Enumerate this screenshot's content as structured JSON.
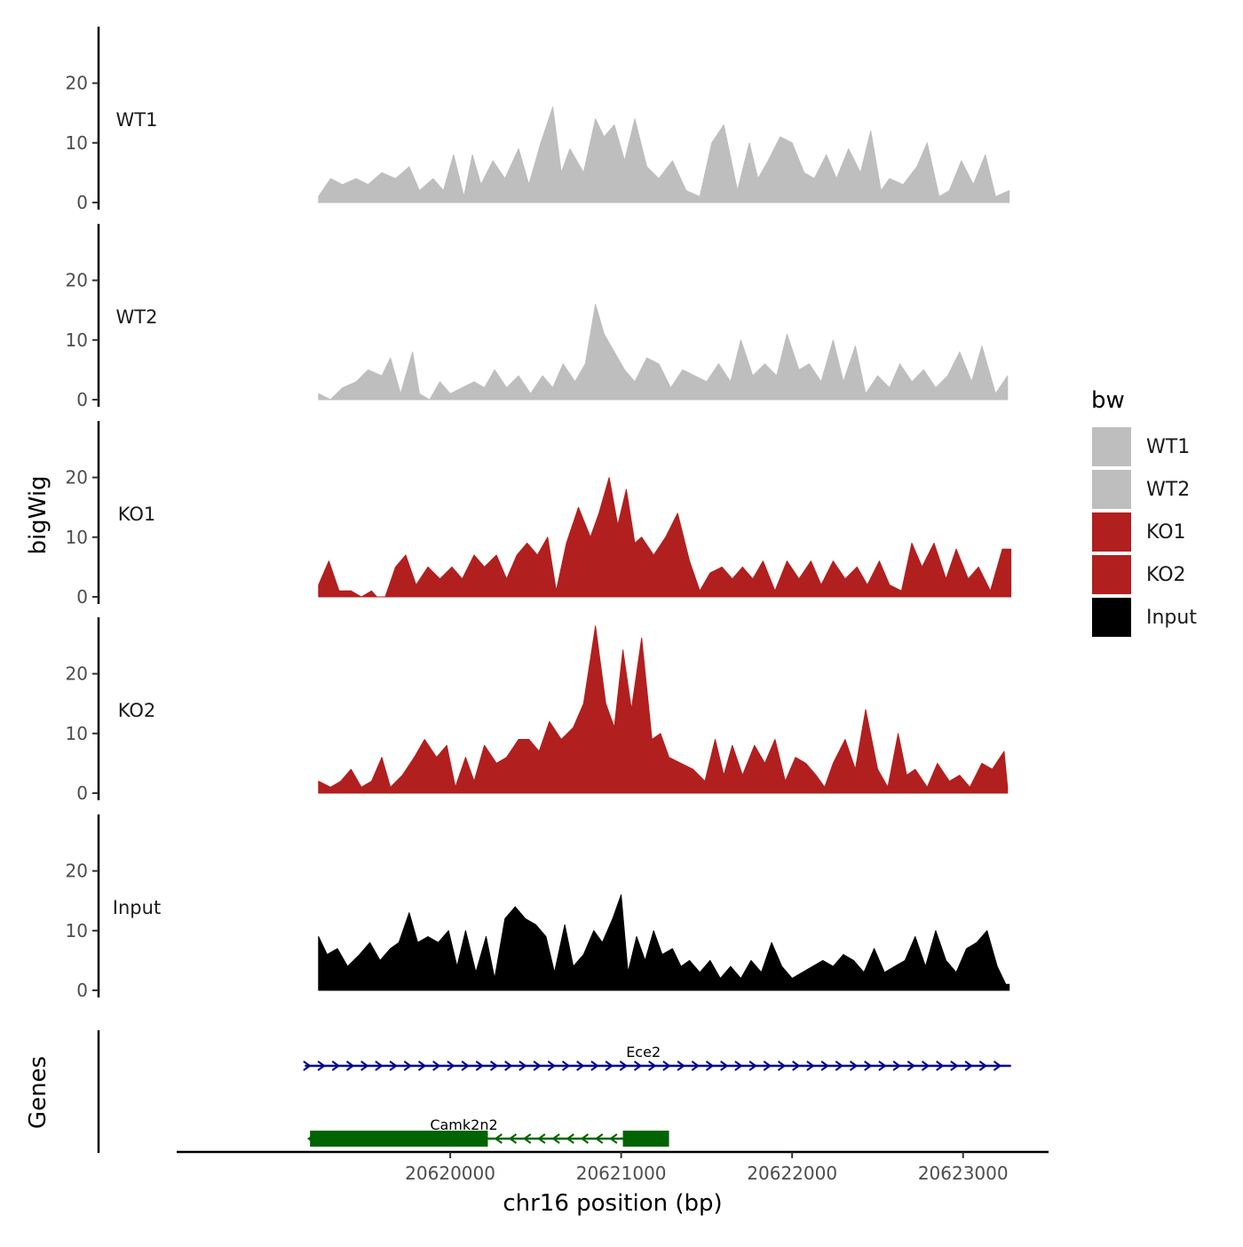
{
  "chart_data": {
    "type": "area",
    "title": "",
    "ylabel": "bigWig",
    "genes_label": "Genes",
    "xlabel": "chr16 position (bp)",
    "xlim": [
      20618400,
      20623500
    ],
    "ylim": [
      0,
      30
    ],
    "y_ticks": [
      "0",
      "10",
      "20"
    ],
    "x_ticks": [
      {
        "value": 20620000,
        "label": "20620000"
      },
      {
        "value": 20621000,
        "label": "20621000"
      },
      {
        "value": 20622000,
        "label": "20622000"
      },
      {
        "value": 20623000,
        "label": "20623000"
      }
    ],
    "legend": {
      "title": "bw",
      "items": [
        {
          "label": "WT1",
          "color": "#bebebe"
        },
        {
          "label": "WT2",
          "color": "#bebebe"
        },
        {
          "label": "KO1",
          "color": "#b21f1f"
        },
        {
          "label": "KO2",
          "color": "#b21f1f"
        },
        {
          "label": "Input",
          "color": "#000000"
        }
      ]
    },
    "series": [
      {
        "name": "WT1",
        "color": "#bebebe",
        "x": [
          20619230,
          20619300,
          20619370,
          20619450,
          20619520,
          20619600,
          20619680,
          20619760,
          20619820,
          20619900,
          20619960,
          20620020,
          20620080,
          20620130,
          20620180,
          20620250,
          20620320,
          20620400,
          20620460,
          20620530,
          20620600,
          20620650,
          20620700,
          20620780,
          20620850,
          20620900,
          20620960,
          20621020,
          20621080,
          20621150,
          20621220,
          20621300,
          20621380,
          20621460,
          20621530,
          20621600,
          20621680,
          20621750,
          20621800,
          20621860,
          20621930,
          20622000,
          20622070,
          20622130,
          20622200,
          20622260,
          20622330,
          20622400,
          20622460,
          20622520,
          20622570,
          20622650,
          20622730,
          20622790,
          20622860,
          20622920,
          20622990,
          20623060,
          20623130,
          20623190,
          20623270
        ],
        "values": [
          1,
          4,
          3,
          4,
          3,
          5,
          4,
          6,
          2,
          4,
          2,
          8,
          1,
          8,
          3,
          7,
          4,
          9,
          3,
          10,
          16,
          5,
          9,
          5,
          14,
          11,
          13,
          7,
          14,
          6,
          4,
          7,
          2,
          1,
          10,
          13,
          2,
          10,
          4,
          7,
          11,
          10,
          5,
          4,
          8,
          4,
          9,
          5,
          12,
          2,
          4,
          3,
          6,
          10,
          1,
          2,
          7,
          3,
          8,
          1,
          2
        ]
      },
      {
        "name": "WT2",
        "color": "#bebebe",
        "x": [
          20619230,
          20619300,
          20619370,
          20619450,
          20619520,
          20619600,
          20619650,
          20619710,
          20619780,
          20619820,
          20619880,
          20619940,
          20620000,
          20620070,
          20620140,
          20620200,
          20620260,
          20620330,
          20620400,
          20620470,
          20620540,
          20620600,
          20620660,
          20620730,
          20620790,
          20620850,
          20620900,
          20620960,
          20621020,
          20621080,
          20621150,
          20621220,
          20621290,
          20621360,
          20621430,
          20621500,
          20621570,
          20621640,
          20621700,
          20621770,
          20621840,
          20621910,
          20621970,
          20622040,
          20622100,
          20622170,
          20622240,
          20622300,
          20622370,
          20622430,
          20622500,
          20622570,
          20622630,
          20622700,
          20622770,
          20622840,
          20622910,
          20622980,
          20623050,
          20623110,
          20623190,
          20623260
        ],
        "values": [
          1,
          0,
          2,
          3,
          5,
          4,
          7,
          1,
          8,
          1,
          0,
          3,
          1,
          2,
          3,
          2,
          5,
          2,
          4,
          1,
          4,
          2,
          6,
          3,
          6,
          16,
          11,
          8,
          5,
          3,
          7,
          6,
          2,
          5,
          4,
          3,
          6,
          3,
          10,
          4,
          6,
          4,
          11,
          5,
          6,
          3,
          10,
          3,
          9,
          1,
          4,
          2,
          6,
          3,
          5,
          2,
          4,
          8,
          3,
          9,
          1,
          4
        ]
      },
      {
        "name": "KO1",
        "color": "#b21f1f",
        "x": [
          20619230,
          20619290,
          20619350,
          20619420,
          20619480,
          20619540,
          20619570,
          20619620,
          20619680,
          20619740,
          20619800,
          20619870,
          20619940,
          20620010,
          20620070,
          20620140,
          20620200,
          20620270,
          20620330,
          20620390,
          20620450,
          20620510,
          20620570,
          20620620,
          20620680,
          20620750,
          20620820,
          20620870,
          20620930,
          20620980,
          20621030,
          20621080,
          20621120,
          20621190,
          20621260,
          20621330,
          20621400,
          20621460,
          20621520,
          20621590,
          20621650,
          20621710,
          20621770,
          20621830,
          20621900,
          20621970,
          20622040,
          20622110,
          20622170,
          20622240,
          20622310,
          20622380,
          20622440,
          20622510,
          20622570,
          20622640,
          20622700,
          20622760,
          20622830,
          20622900,
          20622960,
          20623030,
          20623090,
          20623160,
          20623230,
          20623280
        ],
        "values": [
          2,
          6,
          1,
          1,
          0,
          1,
          0,
          0,
          5,
          7,
          2,
          5,
          3,
          5,
          3,
          7,
          5,
          7,
          3,
          7,
          9,
          7,
          10,
          1,
          9,
          15,
          10,
          14,
          20,
          12,
          18,
          9,
          10,
          7,
          10,
          14,
          6,
          1,
          4,
          5,
          3,
          5,
          3,
          6,
          1,
          6,
          3,
          6,
          2,
          6,
          3,
          5,
          2,
          6,
          2,
          1,
          9,
          5,
          9,
          3,
          8,
          3,
          5,
          1,
          8,
          8
        ]
      },
      {
        "name": "KO2",
        "color": "#b21f1f",
        "x": [
          20619230,
          20619300,
          20619360,
          20619420,
          20619480,
          20619540,
          20619600,
          20619650,
          20619720,
          20619790,
          20619850,
          20619920,
          20619980,
          20620030,
          20620090,
          20620140,
          20620200,
          20620270,
          20620330,
          20620400,
          20620460,
          20620520,
          20620580,
          20620650,
          20620720,
          20620780,
          20620850,
          20620910,
          20620960,
          20621010,
          20621060,
          20621120,
          20621180,
          20621230,
          20621280,
          20621350,
          20621420,
          20621490,
          20621550,
          20621600,
          20621650,
          20621710,
          20621780,
          20621840,
          20621900,
          20621960,
          20622020,
          20622080,
          20622140,
          20622190,
          20622240,
          20622310,
          20622370,
          20622430,
          20622500,
          20622560,
          20622620,
          20622670,
          20622720,
          20622790,
          20622850,
          20622920,
          20622980,
          20623040,
          20623110,
          20623170,
          20623240,
          20623260
        ],
        "values": [
          2,
          1,
          2,
          4,
          1,
          2,
          6,
          1,
          3,
          6,
          9,
          6,
          8,
          1,
          6,
          2,
          8,
          5,
          6,
          9,
          9,
          7,
          12,
          9,
          11,
          15,
          28,
          15,
          11,
          24,
          14,
          26,
          9,
          10,
          6,
          5,
          4,
          2,
          9,
          3,
          8,
          3,
          8,
          5,
          9,
          2,
          6,
          5,
          3,
          1,
          5,
          9,
          4,
          14,
          4,
          1,
          10,
          3,
          4,
          1,
          5,
          2,
          3,
          1,
          5,
          4,
          7,
          1
        ]
      },
      {
        "name": "Input",
        "color": "#000000",
        "x": [
          20619230,
          20619280,
          20619340,
          20619400,
          20619470,
          20619530,
          20619590,
          20619650,
          20619700,
          20619760,
          20619810,
          20619870,
          20619930,
          20619990,
          20620040,
          20620090,
          20620150,
          20620210,
          20620260,
          20620320,
          20620380,
          20620440,
          20620500,
          20620560,
          20620610,
          20620670,
          20620720,
          20620780,
          20620840,
          20620890,
          20620950,
          20621000,
          20621040,
          20621090,
          20621140,
          20621190,
          20621240,
          20621300,
          20621350,
          20621400,
          20621460,
          20621520,
          20621580,
          20621640,
          20621700,
          20621760,
          20621820,
          20621880,
          20621940,
          20622000,
          20622060,
          20622120,
          20622180,
          20622240,
          20622300,
          20622360,
          20622420,
          20622480,
          20622540,
          20622600,
          20622660,
          20622720,
          20622780,
          20622840,
          20622900,
          20622960,
          20623020,
          20623080,
          20623140,
          20623200,
          20623250,
          20623270
        ],
        "values": [
          9,
          6,
          7,
          4,
          6,
          8,
          5,
          7,
          8,
          13,
          8,
          9,
          8,
          10,
          4,
          10,
          3,
          9,
          2,
          12,
          14,
          12,
          11,
          9,
          3,
          11,
          4,
          6,
          10,
          8,
          12,
          16,
          3,
          9,
          5,
          10,
          6,
          7,
          4,
          5,
          3,
          5,
          2,
          4,
          2,
          5,
          3,
          8,
          4,
          2,
          3,
          4,
          5,
          4,
          6,
          5,
          3,
          7,
          3,
          4,
          5,
          9,
          4,
          10,
          5,
          3,
          7,
          8,
          10,
          4,
          1,
          1
        ]
      }
    ],
    "genes": [
      {
        "name": "Ece2",
        "strand": "+",
        "color": "#00008b",
        "start": 20619150,
        "end": 20623280,
        "blocks": []
      },
      {
        "name": "Camk2n2",
        "strand": "-",
        "color": "#006400",
        "start": 20619180,
        "end": 20621280,
        "blocks": [
          [
            20619180,
            20620220
          ],
          [
            20621010,
            20621280
          ]
        ]
      }
    ]
  }
}
